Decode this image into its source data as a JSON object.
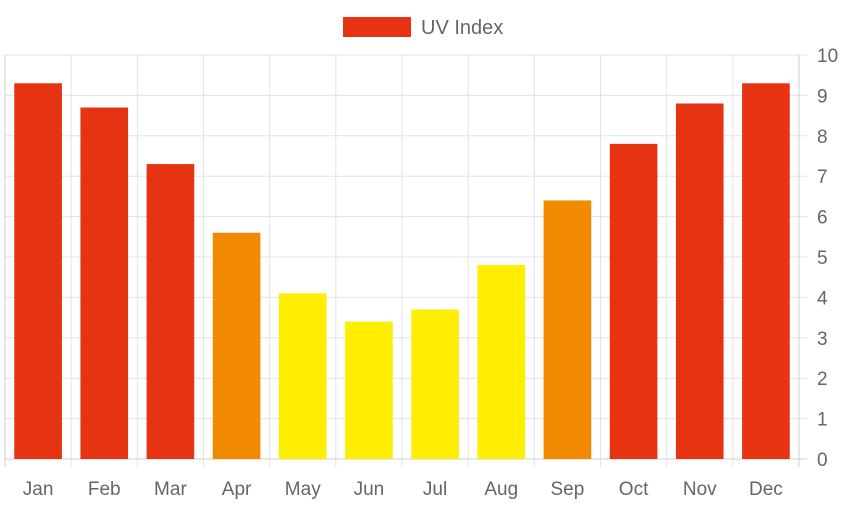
{
  "chart_data": {
    "type": "bar",
    "categories": [
      "Jan",
      "Feb",
      "Mar",
      "Apr",
      "May",
      "Jun",
      "Jul",
      "Aug",
      "Sep",
      "Oct",
      "Nov",
      "Dec"
    ],
    "series": [
      {
        "name": "UV Index",
        "values": [
          9.3,
          8.7,
          7.3,
          5.6,
          4.1,
          3.4,
          3.7,
          4.8,
          6.4,
          7.8,
          8.8,
          9.3
        ],
        "colors": [
          "#e63312",
          "#e63312",
          "#e63312",
          "#f18a00",
          "#ffee00",
          "#ffee00",
          "#ffee00",
          "#ffee00",
          "#f18a00",
          "#e63312",
          "#e63312",
          "#e63312"
        ]
      }
    ],
    "legend": {
      "position": "top",
      "color": "#e63312"
    },
    "y_axis": {
      "position": "right",
      "min": 0,
      "max": 10,
      "step": 1
    },
    "grid": true,
    "title": "",
    "xlabel": "",
    "ylabel": ""
  }
}
